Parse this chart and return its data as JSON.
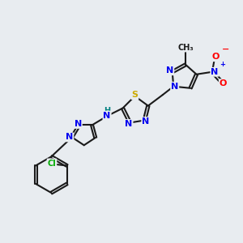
{
  "bg_color": "#e8ecf0",
  "bond_color": "#1a1a1a",
  "bond_width": 1.5,
  "atom_colors": {
    "N": "#0000ee",
    "S": "#ccaa00",
    "H": "#008080",
    "Cl": "#00aa00",
    "O": "#ff0000",
    "C": "#1a1a1a"
  },
  "font_size": 8,
  "fig_size": [
    3.0,
    3.0
  ],
  "dpi": 100
}
